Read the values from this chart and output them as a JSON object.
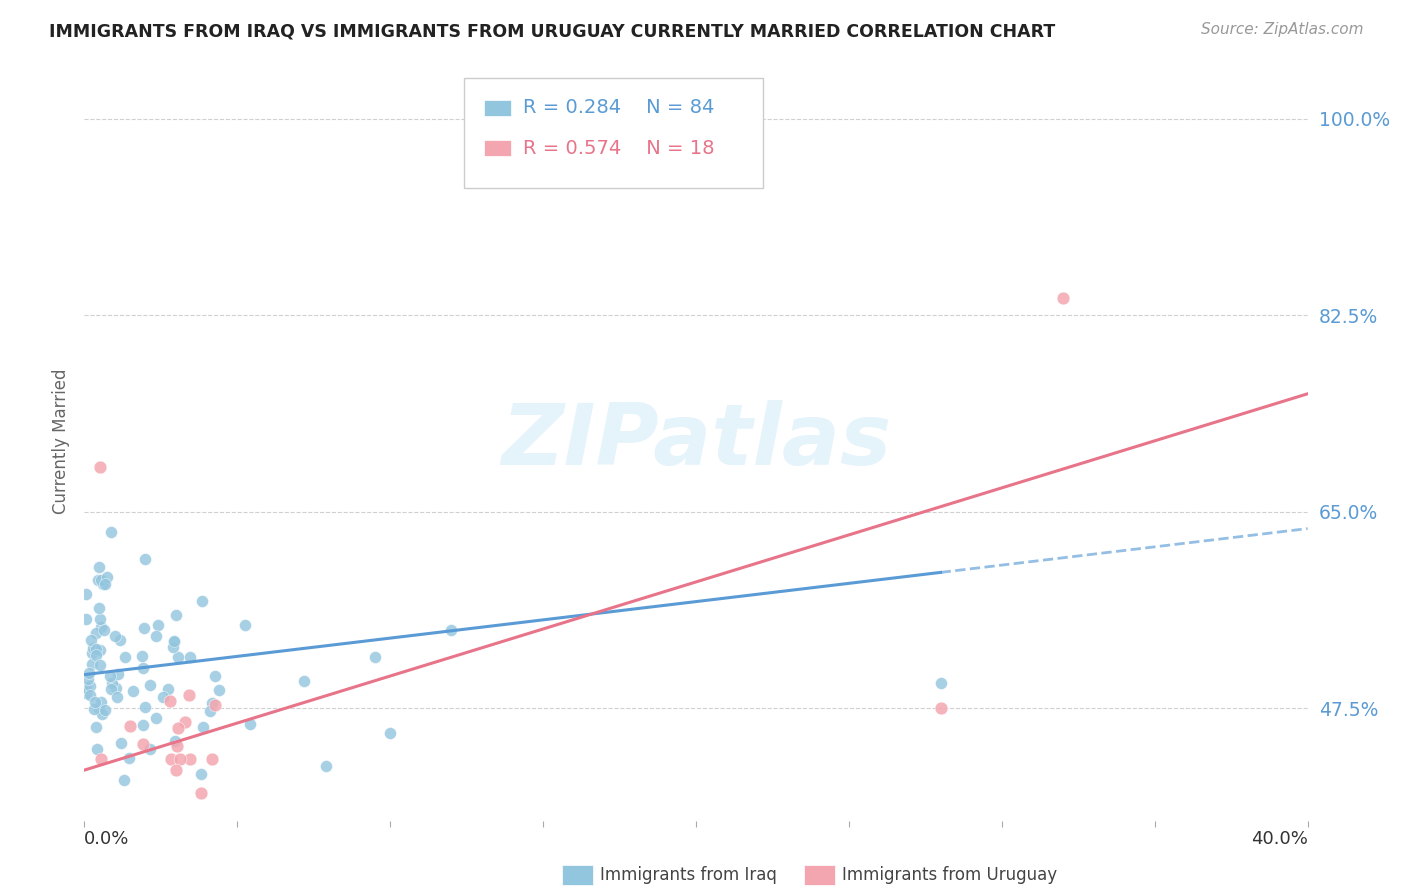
{
  "title": "IMMIGRANTS FROM IRAQ VS IMMIGRANTS FROM URUGUAY CURRENTLY MARRIED CORRELATION CHART",
  "source": "Source: ZipAtlas.com",
  "ylabel": "Currently Married",
  "xmin": 0.0,
  "xmax": 0.4,
  "ymin": 0.375,
  "ymax": 1.05,
  "legend_iraq_R": "0.284",
  "legend_iraq_N": "84",
  "legend_uruguay_R": "0.574",
  "legend_uruguay_N": "18",
  "iraq_color": "#92c5de",
  "uruguay_color": "#f4a6b0",
  "iraq_line_color": "#5b9bd5",
  "iraq_line_color2": "#5b9bd5",
  "uruguay_line_color": "#e8748a",
  "watermark": "ZIPatlas",
  "background_color": "#ffffff",
  "grid_color": "#d0d0d0",
  "ytick_labeled": [
    0.475,
    0.65,
    0.825,
    1.0
  ],
  "ytick_labeled_str": [
    "47.5%",
    "65.0%",
    "82.5%",
    "100.0%"
  ],
  "iraq_trend": [
    0.505,
    0.635
  ],
  "uruguay_trend": [
    0.42,
    0.755
  ]
}
